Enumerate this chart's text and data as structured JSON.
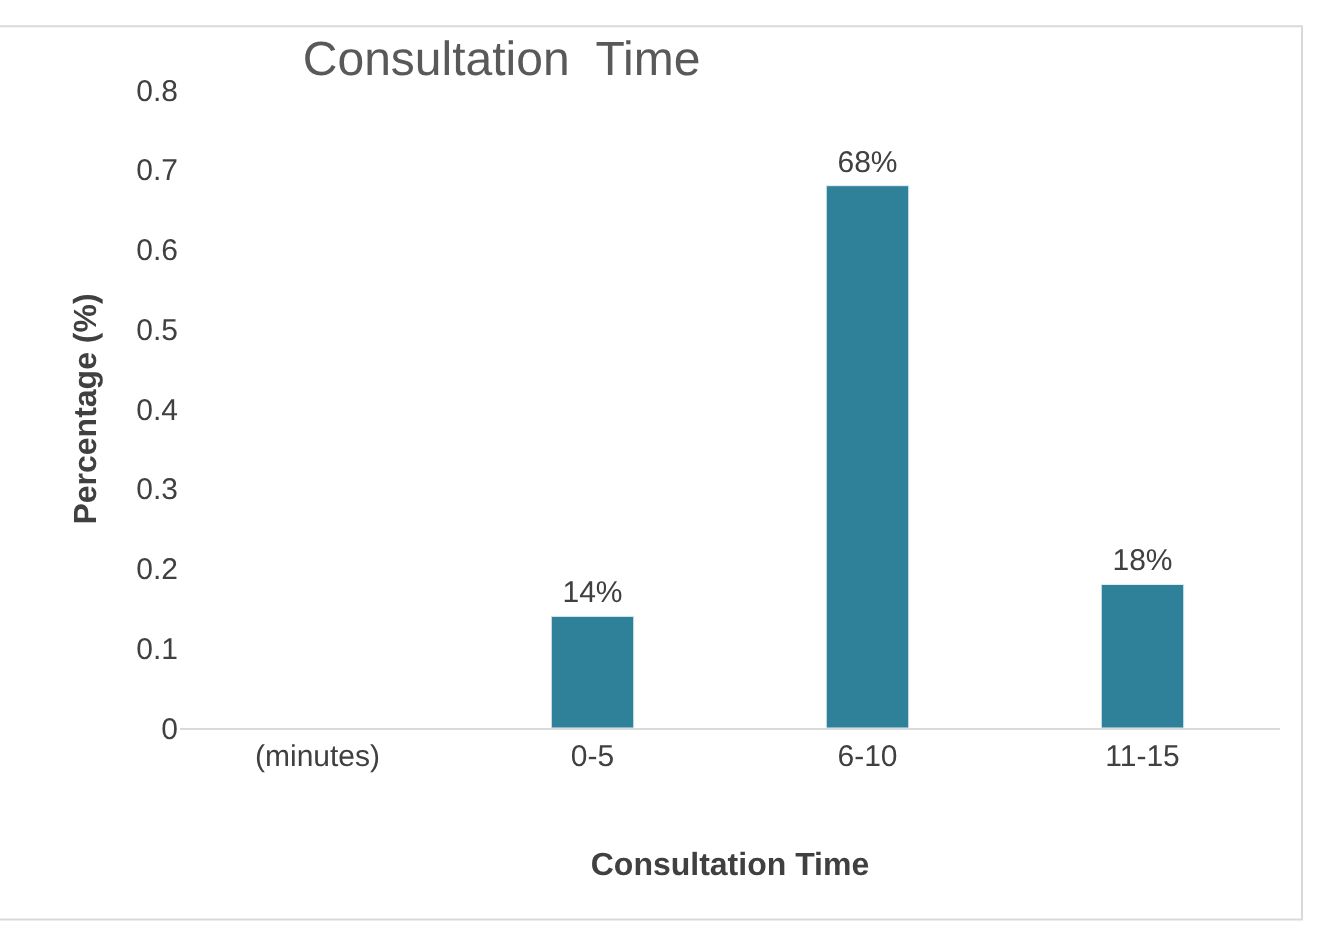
{
  "chart_data": {
    "type": "bar",
    "title": "Consultation  Time",
    "xlabel": "Consultation Time",
    "ylabel": "Percentage (%)",
    "categories": [
      "(minutes)",
      "0-5",
      "6-10",
      "11-15"
    ],
    "values": [
      null,
      0.14,
      0.68,
      0.18
    ],
    "value_labels": [
      null,
      "14%",
      "68%",
      "18%"
    ],
    "color": "#2e8199",
    "ylim": [
      0,
      0.8
    ],
    "yticks": [
      0,
      0.1,
      0.2,
      0.3,
      0.4,
      0.5,
      0.6,
      0.7,
      0.8
    ]
  }
}
